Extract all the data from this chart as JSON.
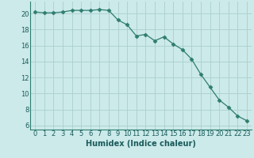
{
  "x": [
    0,
    1,
    2,
    3,
    4,
    5,
    6,
    7,
    8,
    9,
    10,
    11,
    12,
    13,
    14,
    15,
    16,
    17,
    18,
    19,
    20,
    21,
    22,
    23
  ],
  "y": [
    20.2,
    20.1,
    20.1,
    20.2,
    20.4,
    20.4,
    20.4,
    20.5,
    20.4,
    19.2,
    18.6,
    17.2,
    17.4,
    16.6,
    17.1,
    16.2,
    15.5,
    14.3,
    12.4,
    10.8,
    9.2,
    8.3,
    7.2,
    6.6
  ],
  "line_color": "#2e7d6e",
  "marker": "D",
  "marker_size": 2.5,
  "bg_color": "#cceaea",
  "grid_color": "#aacece",
  "xlabel": "Humidex (Indice chaleur)",
  "ylim": [
    5.5,
    21.5
  ],
  "xlim": [
    -0.5,
    23.5
  ],
  "yticks": [
    6,
    8,
    10,
    12,
    14,
    16,
    18,
    20
  ],
  "xticks": [
    0,
    1,
    2,
    3,
    4,
    5,
    6,
    7,
    8,
    9,
    10,
    11,
    12,
    13,
    14,
    15,
    16,
    17,
    18,
    19,
    20,
    21,
    22,
    23
  ],
  "tick_fontsize": 6,
  "xlabel_fontsize": 7
}
